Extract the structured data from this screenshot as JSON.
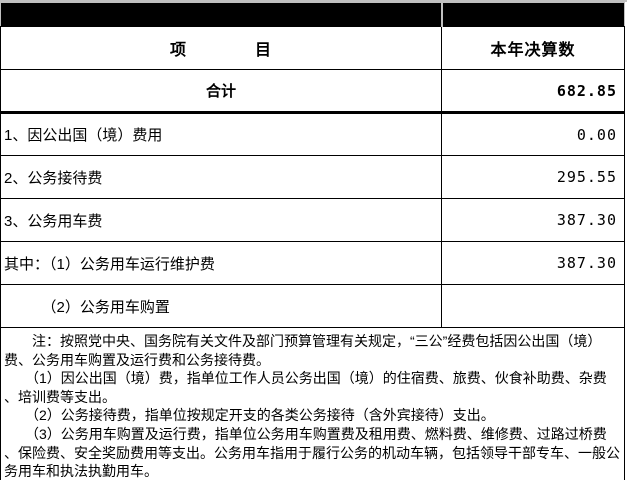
{
  "table": {
    "title_bar": {
      "left": "",
      "right": ""
    },
    "header": {
      "item_col": "项　　　　目",
      "value_col": "本年决算数"
    },
    "total_row": {
      "label": "合计",
      "value": "682.85"
    },
    "rows": [
      {
        "label": "1、因公出国（境）费用",
        "value": "0.00"
      },
      {
        "label": "2、公务接待费",
        "value": "295.55"
      },
      {
        "label": "3、公务用车费",
        "value": "387.30"
      },
      {
        "label": "其中：（1）公务用车运行维护费",
        "value": "387.30"
      },
      {
        "label": "　　　（2）公务用车购置",
        "value": ""
      }
    ]
  },
  "note": {
    "lines": [
      "　　注：按照党中央、国务院有关文件及部门预算管理有关规定，“三公”经费包括因公出国（境）",
      "费、公务用车购置及运行费和公务接待费。",
      "　　（1）因公出国（境）费，指单位工作人员公务出国（境）的住宿费、旅费、伙食补助费、杂费",
      "、培训费等支出。",
      "　　（2）公务接待费，指单位按规定开支的各类公务接待（含外宾接待）支出。",
      "　　（3）公务用车购置及运行费，指单位公务用车购置费及租用费、燃料费、维修费、过路过桥费",
      "、保险费、安全奖励费用等支出。公务用车指用于履行公务的机动车辆，包括领导干部专车、一般公",
      "务用车和执法执勤用车。"
    ]
  },
  "colors": {
    "bar_background": "#000000",
    "border": "#000000",
    "outer_edge": "#c0c0c0",
    "text": "#000000",
    "cell_background": "#ffffff"
  }
}
